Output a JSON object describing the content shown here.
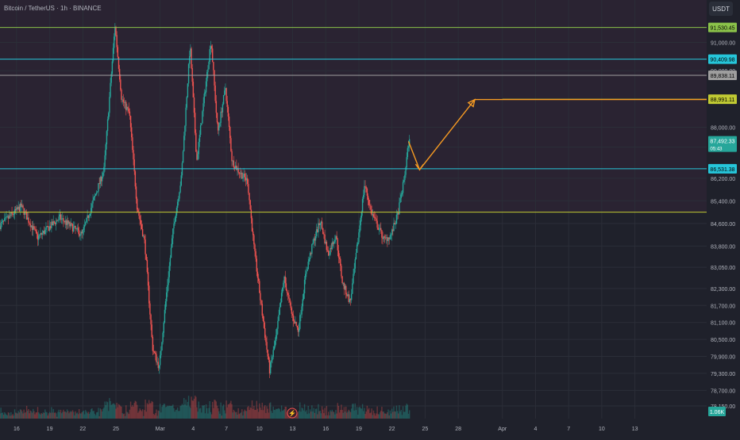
{
  "header": {
    "symbol_label": "Bitcoin / TetherUS · 1h · BINANCE"
  },
  "currency_button": "USDT",
  "colors": {
    "background": "#1f212b",
    "zone_fill": "#2a2332",
    "grid": "#2b2e38",
    "axis_text": "#b2b5be",
    "candle_up": "#26a69a",
    "candle_down": "#ef5350",
    "level_green": "#8bc34a",
    "level_cyan": "#26c6da",
    "level_gray": "#9e9e9e",
    "level_olive": "#c0ca33",
    "arrow": "#f59a23"
  },
  "chart_data": {
    "type": "candlestick",
    "symbol": "Bitcoin / TetherUS",
    "interval": "1h",
    "exchange": "BINANCE",
    "currency": "USDT",
    "ylim": [
      77700,
      92500
    ],
    "y_ticks": [
      "91,000.00",
      "90,000.00",
      "88,000.00",
      "87,300.00",
      "86,200.00",
      "85,400.00",
      "84,600.00",
      "83,800.00",
      "83,050.00",
      "82,300.00",
      "81,700.00",
      "81,100.00",
      "80,500.00",
      "79,900.00",
      "79,300.00",
      "78,700.00",
      "78,150.00"
    ],
    "y_tick_values": [
      91000,
      90000,
      88000,
      87300,
      86200,
      85400,
      84600,
      83800,
      83050,
      82300,
      81700,
      81100,
      80500,
      79900,
      79300,
      78700,
      78150
    ],
    "x_ticks": [
      {
        "label": "16",
        "day": 16
      },
      {
        "label": "19",
        "day": 19
      },
      {
        "label": "22",
        "day": 22
      },
      {
        "label": "25",
        "day": 25
      },
      {
        "label": "Mar",
        "day": 29
      },
      {
        "label": "4",
        "day": 32
      },
      {
        "label": "7",
        "day": 35
      },
      {
        "label": "10",
        "day": 38
      },
      {
        "label": "13",
        "day": 41
      },
      {
        "label": "16",
        "day": 44
      },
      {
        "label": "19",
        "day": 47
      },
      {
        "label": "22",
        "day": 50
      },
      {
        "label": "25",
        "day": 53
      },
      {
        "label": "28",
        "day": 56
      },
      {
        "label": "Apr",
        "day": 60
      },
      {
        "label": "4",
        "day": 63
      },
      {
        "label": "7",
        "day": 66
      },
      {
        "label": "10",
        "day": 69
      },
      {
        "label": "13",
        "day": 72
      }
    ],
    "x_range_days": [
      14.5,
      78.5
    ],
    "horizontal_levels": [
      {
        "label": "91,530.45",
        "value": 91530.45,
        "color": "#8bc34a",
        "from_day": 14.5
      },
      {
        "label": "90,409.98",
        "value": 90409.98,
        "color": "#26c6da",
        "from_day": 14.5
      },
      {
        "label": "89,838.11",
        "value": 89838.11,
        "color": "#9e9e9e",
        "from_day": 14.5
      },
      {
        "label": "88,991.11",
        "value": 88991.11,
        "color": "#c0ca33",
        "from_day": 60
      },
      {
        "label": "86,531.38",
        "value": 86531.38,
        "color": "#26c6da",
        "from_day": 14.5
      },
      {
        "label": "85,000.00",
        "value": 85000,
        "color": "#c0ca33",
        "from_day": 14.5
      }
    ],
    "current_price": {
      "label": "87,492.33",
      "value": 87492.33,
      "countdown": "05:43",
      "color": "#26a69a"
    },
    "volume_label": "1.06K",
    "shaded_zone": [
      85000,
      92500
    ],
    "projection_path": [
      {
        "day": 51.5,
        "price": 87500
      },
      {
        "day": 52.5,
        "price": 86500
      },
      {
        "day": 57.5,
        "price": 88980
      },
      {
        "day": 78.5,
        "price": 88980
      }
    ],
    "price_path": [
      {
        "day": 14.5,
        "price": 84500
      },
      {
        "day": 16.5,
        "price": 85200
      },
      {
        "day": 18.0,
        "price": 84100
      },
      {
        "day": 20.0,
        "price": 84800
      },
      {
        "day": 22.0,
        "price": 84200
      },
      {
        "day": 24.0,
        "price": 86500
      },
      {
        "day": 25.0,
        "price": 91600
      },
      {
        "day": 25.6,
        "price": 89000
      },
      {
        "day": 26.3,
        "price": 88500
      },
      {
        "day": 27.0,
        "price": 85200
      },
      {
        "day": 27.7,
        "price": 83900
      },
      {
        "day": 28.4,
        "price": 80200
      },
      {
        "day": 29.0,
        "price": 79500
      },
      {
        "day": 29.6,
        "price": 81900
      },
      {
        "day": 30.3,
        "price": 84500
      },
      {
        "day": 31.0,
        "price": 86200
      },
      {
        "day": 31.8,
        "price": 90900
      },
      {
        "day": 32.4,
        "price": 86800
      },
      {
        "day": 33.0,
        "price": 88800
      },
      {
        "day": 33.7,
        "price": 91100
      },
      {
        "day": 34.3,
        "price": 87800
      },
      {
        "day": 35.0,
        "price": 89400
      },
      {
        "day": 35.6,
        "price": 86800
      },
      {
        "day": 36.3,
        "price": 86400
      },
      {
        "day": 37.0,
        "price": 86100
      },
      {
        "day": 37.6,
        "price": 83700
      },
      {
        "day": 38.3,
        "price": 81500
      },
      {
        "day": 39.0,
        "price": 79400
      },
      {
        "day": 39.6,
        "price": 80600
      },
      {
        "day": 40.3,
        "price": 82700
      },
      {
        "day": 41.0,
        "price": 81400
      },
      {
        "day": 41.6,
        "price": 80800
      },
      {
        "day": 42.3,
        "price": 82900
      },
      {
        "day": 43.0,
        "price": 84000
      },
      {
        "day": 43.6,
        "price": 84700
      },
      {
        "day": 44.3,
        "price": 83500
      },
      {
        "day": 45.0,
        "price": 84200
      },
      {
        "day": 45.6,
        "price": 82500
      },
      {
        "day": 46.3,
        "price": 81800
      },
      {
        "day": 47.0,
        "price": 84000
      },
      {
        "day": 47.6,
        "price": 86000
      },
      {
        "day": 48.2,
        "price": 85000
      },
      {
        "day": 48.8,
        "price": 84500
      },
      {
        "day": 49.4,
        "price": 84000
      },
      {
        "day": 50.0,
        "price": 84200
      },
      {
        "day": 50.6,
        "price": 84900
      },
      {
        "day": 51.2,
        "price": 86200
      },
      {
        "day": 51.6,
        "price": 87490
      }
    ]
  }
}
